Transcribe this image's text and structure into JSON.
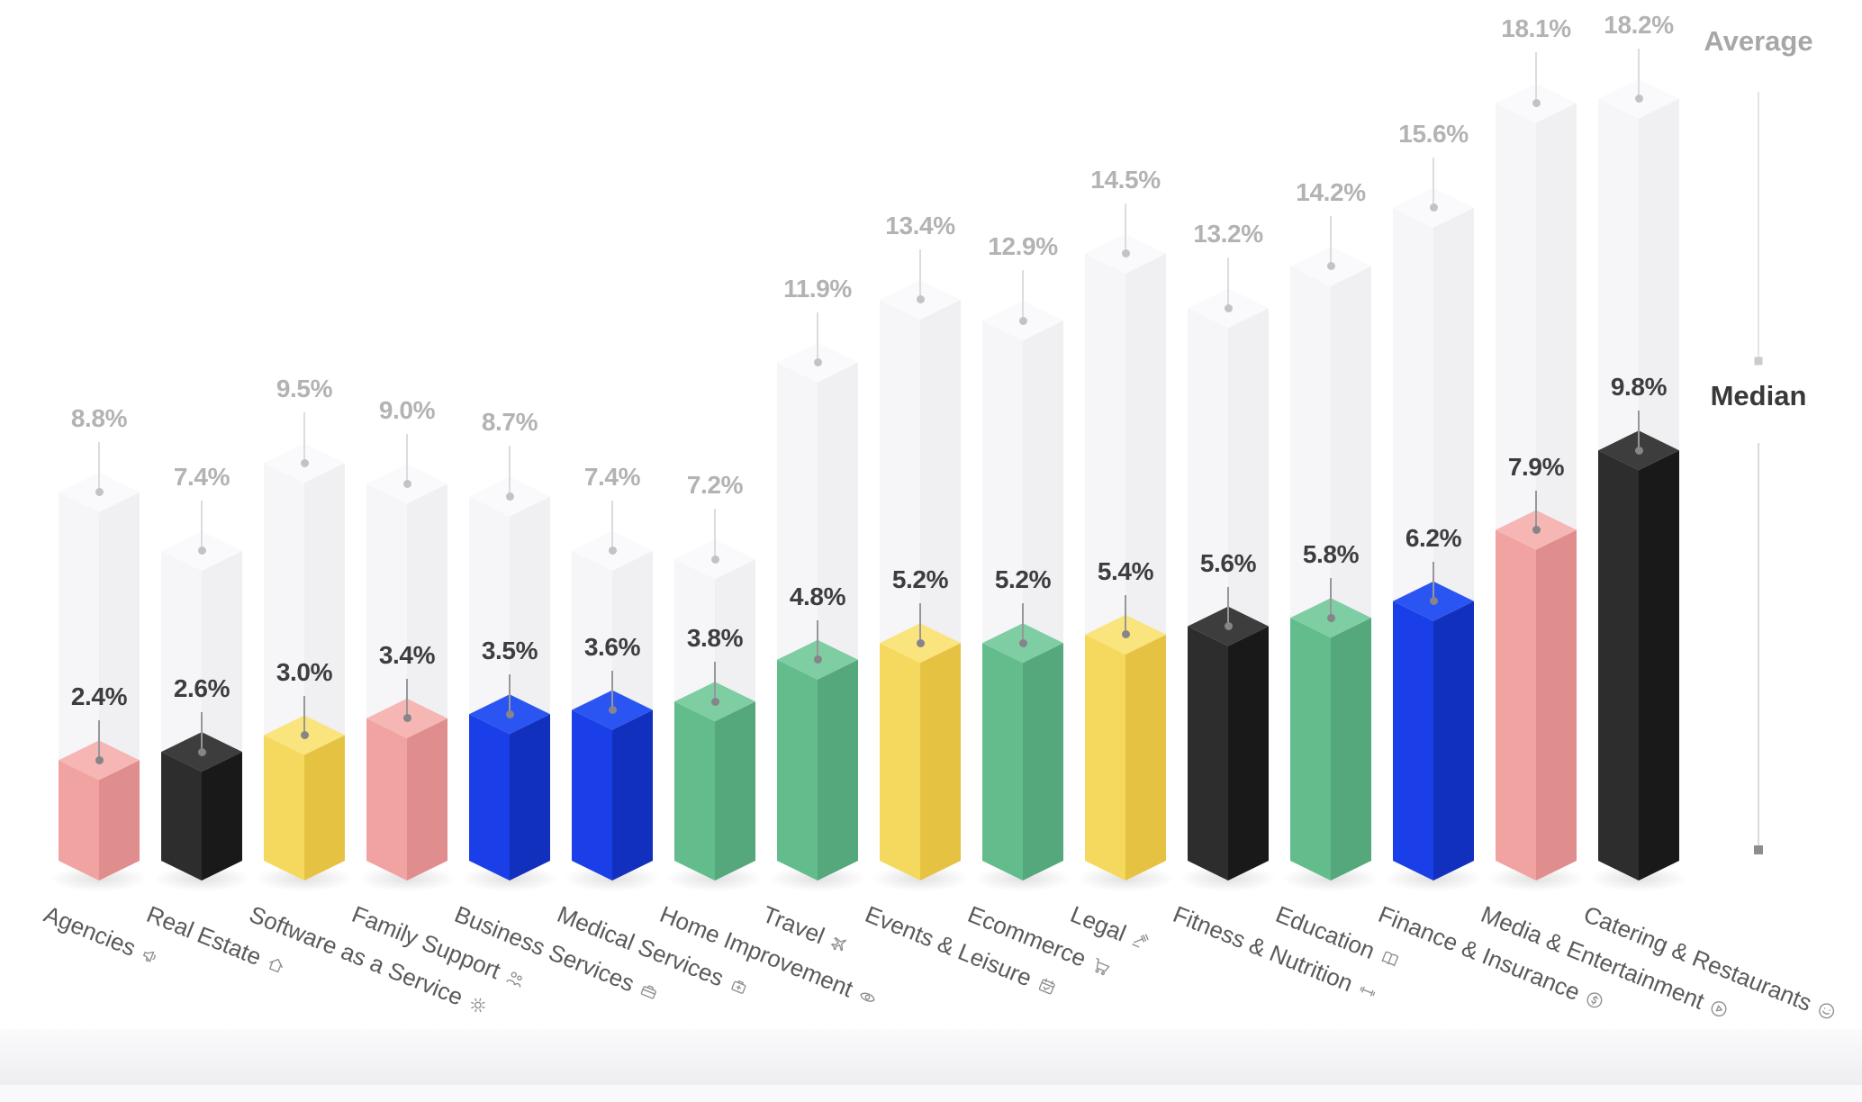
{
  "page": {
    "background": "#ffffff"
  },
  "legend": {
    "average_label": "Average",
    "median_label": "Median"
  },
  "chart_data": {
    "type": "bar",
    "style": "isometric-3d-column",
    "title": "",
    "unit": "%",
    "legend_position": "right",
    "grid": false,
    "categories": [
      "Agencies",
      "Real Estate",
      "Software as a Service",
      "Family Support",
      "Business Services",
      "Medical Services",
      "Home Improvement",
      "Travel",
      "Events & Leisure",
      "Ecommerce",
      "Legal",
      "Fitness & Nutrition",
      "Education",
      "Finance & Insurance",
      "Media & Entertainment",
      "Catering & Restaurants"
    ],
    "category_icons": [
      "megaphone-icon",
      "home-icon",
      "gear-icon",
      "family-icon",
      "briefcase-icon",
      "medical-bag-icon",
      "eye-icon",
      "plane-icon",
      "calendar-check-icon",
      "shopping-cart-icon",
      "gavel-icon",
      "dumbbell-icon",
      "book-icon",
      "dollar-circle-icon",
      "play-circle-icon",
      "smiley-icon"
    ],
    "bar_colors": [
      "pink",
      "black",
      "yellow",
      "pink",
      "blue",
      "blue",
      "green",
      "green",
      "yellow",
      "green",
      "yellow",
      "black",
      "green",
      "blue",
      "pink",
      "black"
    ],
    "series": [
      {
        "name": "Average",
        "values": [
          8.8,
          7.4,
          9.5,
          9.0,
          8.7,
          7.4,
          7.2,
          11.9,
          13.4,
          12.9,
          14.5,
          13.2,
          14.2,
          15.6,
          18.1,
          18.2
        ],
        "labels": [
          "8.8%",
          "7.4%",
          "9.5%",
          "9.0%",
          "8.7%",
          "7.4%",
          "7.2%",
          "11.9%",
          "13.4%",
          "12.9%",
          "14.5%",
          "13.2%",
          "14.2%",
          "15.6%",
          "18.1%",
          "18.2%"
        ]
      },
      {
        "name": "Median",
        "values": [
          2.4,
          2.6,
          3.0,
          3.4,
          3.5,
          3.6,
          3.8,
          4.8,
          5.2,
          5.2,
          5.4,
          5.6,
          5.8,
          6.2,
          7.9,
          9.8
        ],
        "labels": [
          "2.4%",
          "2.6%",
          "3.0%",
          "3.4%",
          "3.5%",
          "3.6%",
          "3.8%",
          "4.8%",
          "5.2%",
          "5.2%",
          "5.4%",
          "5.6%",
          "5.8%",
          "6.2%",
          "7.9%",
          "9.8%"
        ]
      }
    ],
    "palette": {
      "pink": {
        "left": "#F1A3A2",
        "right": "#E08D8D",
        "top": "#F6B6B4"
      },
      "black": {
        "left": "#2D2D2D",
        "right": "#191919",
        "top": "#3D3D3D"
      },
      "yellow": {
        "left": "#F5D95E",
        "right": "#E6C243",
        "top": "#F9E47D"
      },
      "blue": {
        "left": "#1A3FE8",
        "right": "#1230BE",
        "top": "#2B55F2"
      },
      "green": {
        "left": "#63BC8B",
        "right": "#54A87B",
        "top": "#7FCDA3"
      },
      "average": {
        "left": "#F6F6F8",
        "right": "#F0F0F3",
        "top": "#FAFAFC"
      }
    },
    "colors": {
      "average_value_label": "#B3B3B5",
      "median_value_label": "#3D3D3F",
      "category_label": "#5A5A5C",
      "icon": "#8E8E90",
      "average_pin_line": "#DCDCDE",
      "average_pin_dot": "#C3C3C5",
      "median_pin_line": "#97979B",
      "median_pin_dot": "#85858A",
      "legend_average": "#A7A7A9",
      "legend_median": "#39393B",
      "legend_line_top": "#E4E4E6",
      "legend_line_bottom": "#DADADC",
      "legend_dot_top": "#CBCBCD",
      "legend_dot_bottom": "#8D8D8F",
      "shadow": "rgba(70,70,75,0.16)"
    }
  }
}
